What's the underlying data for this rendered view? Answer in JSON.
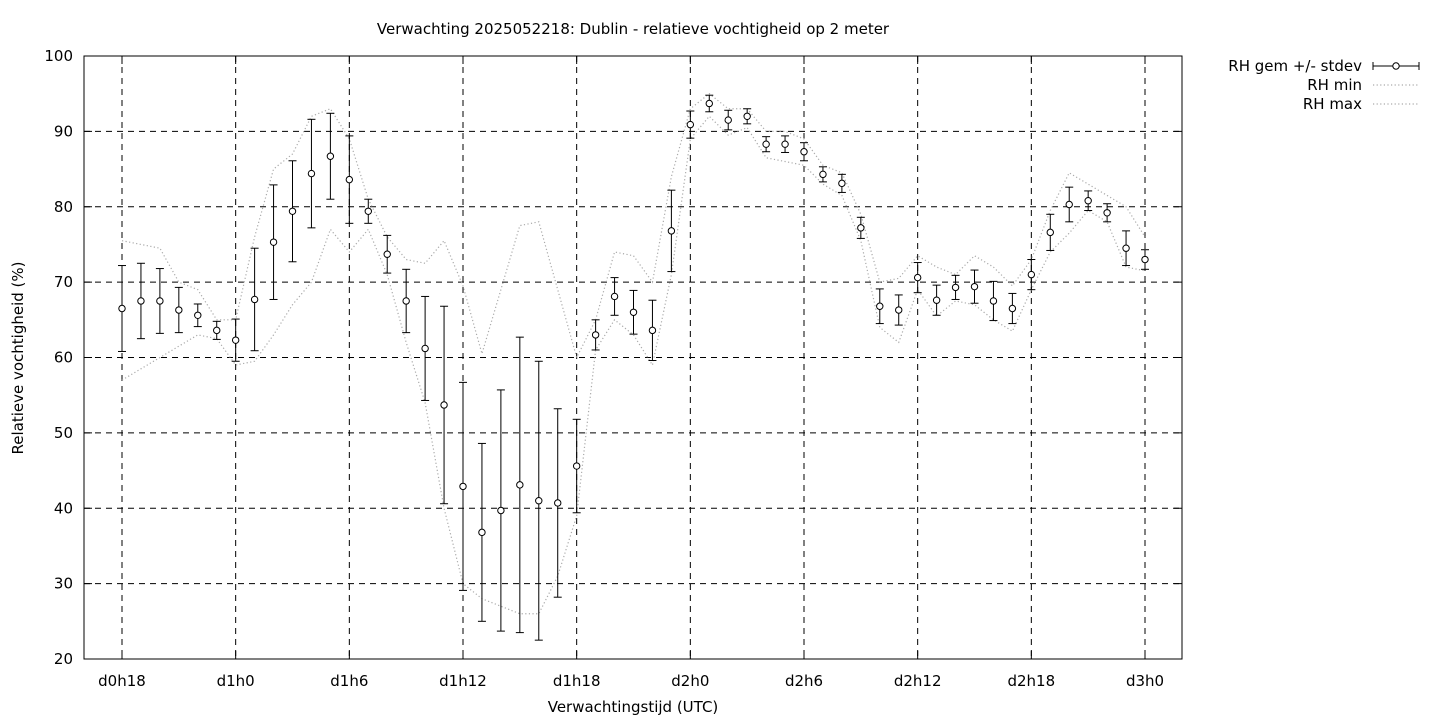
{
  "chart_data": {
    "type": "line",
    "title": "Verwachting 2025052218: Dublin - relatieve vochtigheid op 2 meter",
    "xlabel": "Verwachtingstijd (UTC)",
    "ylabel": "Relatieve vochtigheid (%)",
    "xlim": [
      18,
      72
    ],
    "ylim": [
      20,
      100
    ],
    "yticks": [
      20,
      30,
      40,
      50,
      60,
      70,
      80,
      90,
      100
    ],
    "xticks": [
      {
        "value": 18,
        "label": "d0h18"
      },
      {
        "value": 24,
        "label": "d1h0"
      },
      {
        "value": 30,
        "label": "d1h6"
      },
      {
        "value": 36,
        "label": "d1h12"
      },
      {
        "value": 42,
        "label": "d1h18"
      },
      {
        "value": 48,
        "label": "d2h0"
      },
      {
        "value": 54,
        "label": "d2h6"
      },
      {
        "value": 60,
        "label": "d2h12"
      },
      {
        "value": 66,
        "label": "d2h18"
      },
      {
        "value": 72,
        "label": "d3h0"
      }
    ],
    "grid": true,
    "legend_position": "outside-top-right",
    "legend": [
      "RH gem +/- stdev",
      "RH min",
      "RH max"
    ],
    "x": [
      18,
      19,
      20,
      21,
      22,
      23,
      24,
      25,
      26,
      27,
      28,
      29,
      30,
      31,
      32,
      33,
      34,
      35,
      36,
      37,
      38,
      39,
      40,
      41,
      42,
      43,
      44,
      45,
      46,
      47,
      48,
      49,
      50,
      51,
      52,
      53,
      54,
      55,
      56,
      57,
      58,
      59,
      60,
      61,
      62,
      63,
      64,
      65,
      66,
      67,
      68,
      69,
      70,
      71,
      72
    ],
    "series": [
      {
        "name": "RH gem +/- stdev",
        "style": "errorbars",
        "values": [
          66.5,
          67.5,
          67.5,
          66.3,
          65.6,
          63.6,
          62.3,
          67.7,
          75.3,
          79.4,
          84.4,
          86.7,
          83.6,
          79.4,
          73.7,
          67.5,
          61.2,
          53.7,
          42.9,
          36.8,
          39.7,
          43.1,
          41.0,
          40.7,
          45.6,
          63.0,
          68.1,
          66.0,
          63.6,
          76.8,
          90.9,
          93.7,
          91.5,
          92.0,
          88.3,
          88.3,
          87.3,
          84.3,
          83.1,
          77.2,
          66.8,
          66.3,
          70.6,
          67.6,
          69.3,
          69.4,
          67.5,
          66.5,
          71.0,
          76.6,
          80.3,
          80.8,
          79.2,
          74.5,
          73.0
        ],
        "stdev": [
          5.7,
          5.0,
          4.3,
          3.0,
          1.5,
          1.2,
          2.8,
          6.8,
          7.6,
          6.7,
          7.2,
          5.7,
          5.8,
          1.6,
          2.5,
          4.2,
          6.9,
          13.1,
          13.8,
          11.8,
          16.0,
          19.6,
          18.5,
          12.5,
          6.2,
          2.0,
          2.5,
          2.9,
          4.0,
          5.4,
          1.8,
          1.1,
          1.3,
          1.0,
          1.0,
          1.1,
          1.2,
          1.0,
          1.2,
          1.4,
          2.3,
          2.0,
          2.0,
          2.0,
          1.6,
          2.2,
          2.6,
          2.0,
          2.0,
          2.4,
          2.3,
          1.3,
          1.2,
          2.3,
          1.3
        ]
      },
      {
        "name": "RH min",
        "style": "dotted",
        "values": [
          57.0,
          58.5,
          60.0,
          61.5,
          63.0,
          62.5,
          59.0,
          59.5,
          63.0,
          67.0,
          70.0,
          77.0,
          74.0,
          77.0,
          71.0,
          62.0,
          54.0,
          40.0,
          30.0,
          28.0,
          27.0,
          26.0,
          26.0,
          31.0,
          39.0,
          61.0,
          65.0,
          63.0,
          59.0,
          71.0,
          89.0,
          92.0,
          89.5,
          90.5,
          86.5,
          86.0,
          85.5,
          83.0,
          81.5,
          75.5,
          64.0,
          62.0,
          69.0,
          65.5,
          67.5,
          67.0,
          65.0,
          63.5,
          69.0,
          74.0,
          76.5,
          79.5,
          78.0,
          72.0,
          71.5
        ]
      },
      {
        "name": "RH max",
        "style": "dotted",
        "values": [
          75.5,
          75.0,
          74.5,
          70.0,
          69.0,
          65.0,
          65.0,
          76.0,
          85.0,
          87.0,
          92.0,
          93.0,
          89.0,
          81.0,
          76.0,
          73.0,
          72.5,
          75.5,
          69.5,
          60.5,
          69.0,
          77.5,
          78.0,
          69.0,
          60.0,
          65.0,
          74.0,
          73.5,
          70.0,
          84.0,
          93.0,
          95.0,
          93.0,
          93.0,
          90.0,
          90.0,
          89.0,
          85.5,
          84.5,
          79.0,
          70.0,
          70.5,
          73.5,
          72.0,
          71.0,
          73.5,
          72.0,
          69.5,
          73.0,
          79.5,
          84.5,
          83.0,
          81.5,
          80.0,
          76.0
        ]
      }
    ]
  }
}
